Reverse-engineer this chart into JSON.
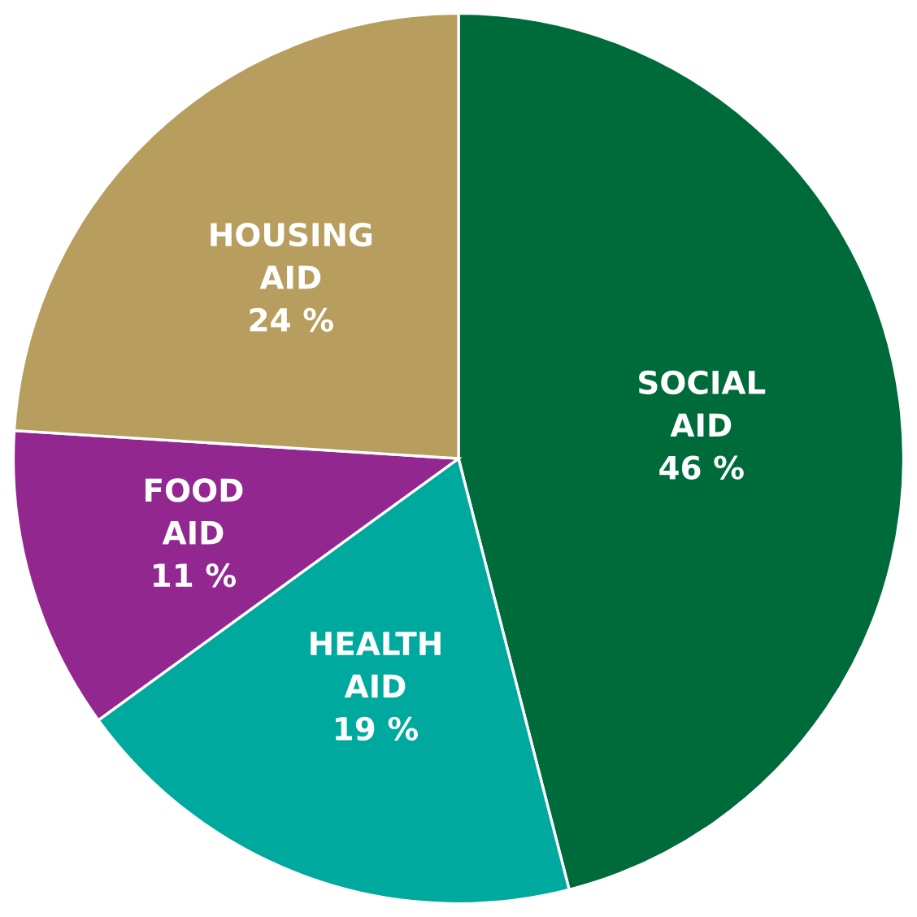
{
  "chart_data": {
    "type": "pie",
    "categories": [
      "SOCIAL AID",
      "HEALTH AID",
      "FOOD AID",
      "HOUSING AID"
    ],
    "values": [
      46,
      19,
      11,
      24
    ],
    "colors": [
      "#006b3a",
      "#00a99d",
      "#92278f",
      "#b79e5e"
    ],
    "value_labels": [
      "46 %",
      "19 %",
      "11 %",
      "24 %"
    ]
  }
}
